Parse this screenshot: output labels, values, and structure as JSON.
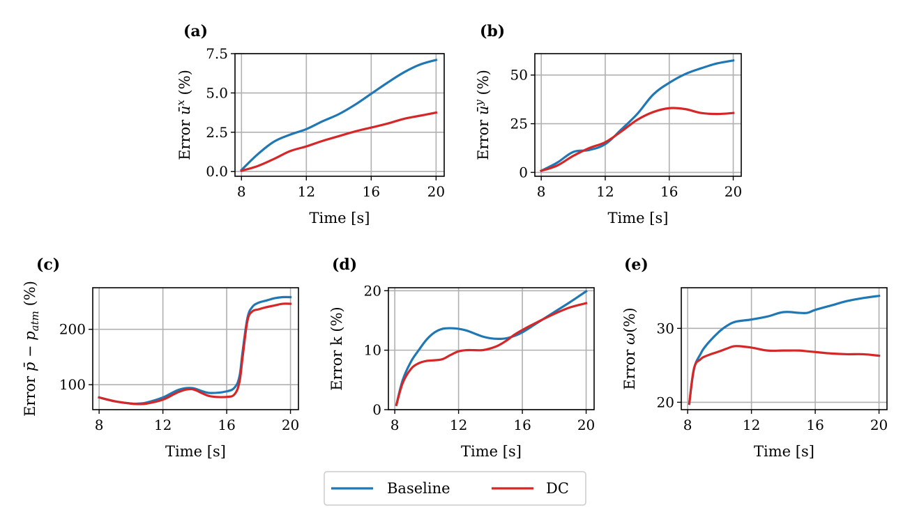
{
  "figure": {
    "legend": [
      {
        "name": "Baseline",
        "color": "#1f77b4"
      },
      {
        "name": "DC",
        "color": "#d62728"
      }
    ]
  },
  "chart_data": [
    {
      "type": "line",
      "panel": "(a)",
      "xlabel": "Time [s]",
      "ylabel": "Error ū^x (%)",
      "ylabel_base": "Error ",
      "ylabel_sym": "ū",
      "ylabel_sup": "x",
      "ylabel_tail": " (%)",
      "xlim": [
        7.6,
        20.5
      ],
      "ylim": [
        -0.3,
        7.5
      ],
      "xticks": [
        8,
        12,
        16,
        20
      ],
      "xtick_labels": [
        "8",
        "12",
        "16",
        "20"
      ],
      "yticks": [
        0,
        2.5,
        5,
        7.5
      ],
      "ytick_labels": [
        "0.0",
        "2.5",
        "5.0",
        "7.5"
      ],
      "grid": true,
      "x": [
        8,
        9,
        10,
        11,
        12,
        13,
        14,
        15,
        16,
        17,
        18,
        19,
        20
      ],
      "series": [
        {
          "name": "Baseline",
          "values": [
            0.1,
            1.1,
            1.9,
            2.35,
            2.7,
            3.2,
            3.65,
            4.25,
            4.95,
            5.65,
            6.3,
            6.8,
            7.1
          ]
        },
        {
          "name": "DC",
          "values": [
            0.05,
            0.35,
            0.8,
            1.3,
            1.6,
            1.95,
            2.25,
            2.55,
            2.8,
            3.05,
            3.35,
            3.55,
            3.75
          ]
        }
      ]
    },
    {
      "type": "line",
      "panel": "(b)",
      "xlabel": "Time [s]",
      "ylabel": "Error ū^y (%)",
      "ylabel_base": "Error ",
      "ylabel_sym": "ū",
      "ylabel_sup": "y",
      "ylabel_tail": " (%)",
      "xlim": [
        7.6,
        20.5
      ],
      "ylim": [
        -2,
        61
      ],
      "xticks": [
        8,
        12,
        16,
        20
      ],
      "xtick_labels": [
        "8",
        "12",
        "16",
        "20"
      ],
      "yticks": [
        0,
        25,
        50
      ],
      "ytick_labels": [
        "0",
        "25",
        "50"
      ],
      "grid": true,
      "x": [
        8,
        9,
        10,
        11,
        12,
        13,
        14,
        15,
        16,
        17,
        18,
        19,
        20
      ],
      "series": [
        {
          "name": "Baseline",
          "values": [
            0.8,
            5,
            10.5,
            11.5,
            14.5,
            22,
            30,
            40,
            46,
            50.5,
            53.5,
            56,
            57.5
          ]
        },
        {
          "name": "DC",
          "values": [
            0.8,
            3.5,
            8.5,
            12.5,
            15.5,
            21,
            27,
            31,
            33,
            32.5,
            30.5,
            30,
            30.5
          ]
        }
      ]
    },
    {
      "type": "line",
      "panel": "(c)",
      "xlabel": "Time [s]",
      "ylabel": "Error p̄ − p_atm (%)",
      "ylabel_base": "Error ",
      "ylabel_sym": "p̄ − p",
      "ylabel_sub": "atm",
      "ylabel_tail": " (%)",
      "xlim": [
        7.6,
        20.5
      ],
      "ylim": [
        55,
        275
      ],
      "xticks": [
        8,
        12,
        16,
        20
      ],
      "xtick_labels": [
        "8",
        "12",
        "16",
        "20"
      ],
      "yticks": [
        100,
        200
      ],
      "ytick_labels": [
        "100",
        "200"
      ],
      "grid": true,
      "x": [
        8,
        9,
        10,
        10.5,
        11,
        12,
        13,
        13.8,
        14.5,
        15,
        16,
        16.5,
        16.8,
        17,
        17.3,
        17.6,
        18,
        18.5,
        19,
        19.5,
        20
      ],
      "series": [
        {
          "name": "Baseline",
          "values": [
            77,
            70,
            66,
            66,
            68,
            77,
            91,
            94,
            88,
            85,
            88,
            95,
            115,
            160,
            220,
            240,
            248,
            252,
            256,
            258,
            258
          ]
        },
        {
          "name": "DC",
          "values": [
            77,
            70,
            66,
            65,
            66,
            73,
            87,
            92,
            84,
            79,
            78,
            83,
            105,
            150,
            215,
            232,
            236,
            240,
            243,
            246,
            246
          ]
        }
      ]
    },
    {
      "type": "line",
      "panel": "(d)",
      "xlabel": "Time [s]",
      "ylabel": "Error k (%)",
      "ylabel_base": "Error k (%)",
      "xlim": [
        7.6,
        20.5
      ],
      "ylim": [
        0,
        20.5
      ],
      "xticks": [
        8,
        12,
        16,
        20
      ],
      "xtick_labels": [
        "8",
        "12",
        "16",
        "20"
      ],
      "yticks": [
        0,
        10,
        20
      ],
      "ytick_labels": [
        "0",
        "10",
        "20"
      ],
      "grid": true,
      "x": [
        8.1,
        8.5,
        9,
        9.5,
        10,
        10.5,
        11,
        11.5,
        12,
        12.5,
        13,
        13.5,
        14,
        14.5,
        15,
        15.5,
        16,
        17,
        18,
        19,
        20
      ],
      "series": [
        {
          "name": "Baseline",
          "values": [
            0.8,
            5,
            8,
            10,
            11.8,
            13,
            13.6,
            13.7,
            13.6,
            13.3,
            12.8,
            12.3,
            12,
            11.9,
            12,
            12.4,
            13,
            14.7,
            16.4,
            18.1,
            19.9
          ]
        },
        {
          "name": "DC",
          "values": [
            0.8,
            4.5,
            6.8,
            7.8,
            8.2,
            8.3,
            8.5,
            9.2,
            9.8,
            10,
            10,
            10,
            10.3,
            10.8,
            11.6,
            12.6,
            13.4,
            14.8,
            16.1,
            17.2,
            17.9
          ]
        }
      ]
    },
    {
      "type": "line",
      "panel": "(e)",
      "xlabel": "Time [s]",
      "ylabel": "Error ω (%)",
      "ylabel_base": "Error ",
      "ylabel_sym": "ω",
      "ylabel_tail": " (%)",
      "xlim": [
        7.6,
        20.5
      ],
      "ylim": [
        19,
        35.5
      ],
      "xticks": [
        8,
        12,
        16,
        20
      ],
      "xtick_labels": [
        "8",
        "12",
        "16",
        "20"
      ],
      "yticks": [
        20,
        30
      ],
      "ytick_labels": [
        "20",
        "30"
      ],
      "grid": true,
      "x": [
        8.1,
        8.4,
        8.8,
        9.2,
        10,
        10.5,
        11,
        12,
        13,
        14,
        15,
        15.5,
        16,
        17,
        18,
        19,
        20
      ],
      "series": [
        {
          "name": "Baseline",
          "values": [
            19.8,
            24.5,
            26.5,
            27.8,
            29.6,
            30.4,
            30.9,
            31.2,
            31.6,
            32.2,
            32.1,
            32.1,
            32.5,
            33.1,
            33.7,
            34.1,
            34.4
          ]
        },
        {
          "name": "DC",
          "values": [
            19.8,
            24.6,
            25.8,
            26.3,
            26.9,
            27.3,
            27.6,
            27.4,
            27.0,
            27.0,
            27.0,
            26.9,
            26.8,
            26.6,
            26.5,
            26.5,
            26.3
          ]
        }
      ]
    }
  ]
}
